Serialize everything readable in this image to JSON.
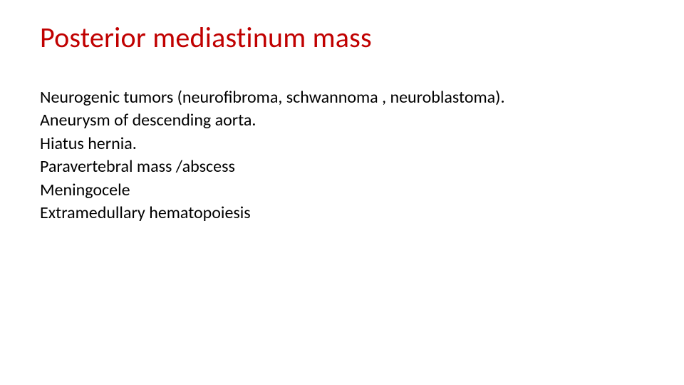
{
  "slide": {
    "title": "Posterior mediastinum mass",
    "title_color": "#c00000",
    "title_fontsize": 40,
    "body_fontsize": 24,
    "body_color": "#000000",
    "background_color": "#ffffff",
    "lines": [
      "Neurogenic tumors (neurofibroma, schwannoma , neuroblastoma).",
      "Aneurysm of descending aorta.",
      "Hiatus hernia.",
      "Paravertebral mass /abscess",
      "Meningocele",
      "Extramedullary hematopoiesis"
    ]
  }
}
